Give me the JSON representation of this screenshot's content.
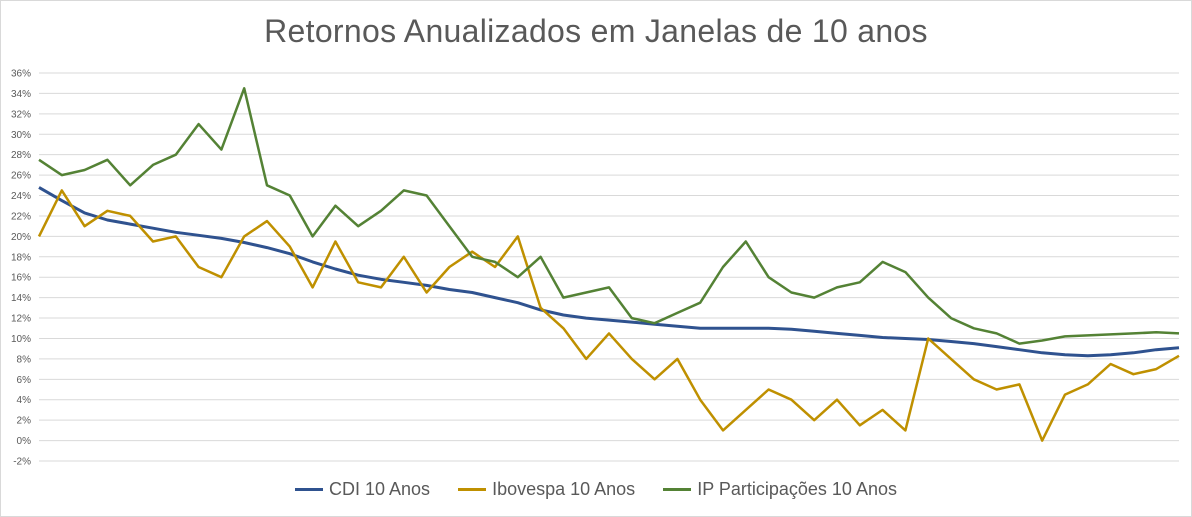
{
  "chart_data": {
    "type": "line",
    "title": "Retornos Anualizados em Janelas de 10 anos",
    "xlabel": "",
    "ylabel": "",
    "ylim": [
      -2,
      36
    ],
    "ytick_values": [
      -2,
      0,
      2,
      4,
      6,
      8,
      10,
      12,
      14,
      16,
      18,
      20,
      22,
      24,
      26,
      28,
      30,
      32,
      34,
      36
    ],
    "ytick_labels": [
      "-2%",
      "0%",
      "2%",
      "4%",
      "6%",
      "8%",
      "10%",
      "12%",
      "14%",
      "16%",
      "18%",
      "20%",
      "22%",
      "24%",
      "26%",
      "28%",
      "30%",
      "32%",
      "34%",
      "36%"
    ],
    "grid": true,
    "legend_position": "bottom",
    "x_points": 51,
    "series": [
      {
        "name": "CDI 10 Anos",
        "color": "#2f528f",
        "values": [
          24.8,
          23.5,
          22.3,
          21.6,
          21.2,
          20.8,
          20.4,
          20.1,
          19.8,
          19.4,
          18.9,
          18.3,
          17.5,
          16.8,
          16.2,
          15.8,
          15.5,
          15.2,
          14.8,
          14.5,
          14.0,
          13.5,
          12.8,
          12.3,
          12.0,
          11.8,
          11.6,
          11.4,
          11.2,
          11.0,
          11.0,
          11.0,
          11.0,
          10.9,
          10.7,
          10.5,
          10.3,
          10.1,
          10.0,
          9.9,
          9.7,
          9.5,
          9.2,
          8.9,
          8.6,
          8.4,
          8.3,
          8.4,
          8.6,
          8.9,
          9.1
        ]
      },
      {
        "name": "Ibovespa 10 Anos",
        "color": "#bf9000",
        "values": [
          20.0,
          24.5,
          21.0,
          22.5,
          22.0,
          19.5,
          20.0,
          17.0,
          16.0,
          20.0,
          21.5,
          19.0,
          15.0,
          19.5,
          15.5,
          15.0,
          18.0,
          14.5,
          17.0,
          18.5,
          17.0,
          20.0,
          13.0,
          11.0,
          8.0,
          10.5,
          8.0,
          6.0,
          8.0,
          4.0,
          1.0,
          3.0,
          5.0,
          4.0,
          2.0,
          4.0,
          1.5,
          3.0,
          1.0,
          10.0,
          8.0,
          6.0,
          5.0,
          5.5,
          0.0,
          4.5,
          5.5,
          7.5,
          6.5,
          7.0,
          8.3
        ]
      },
      {
        "name": "IP Participações 10 Anos",
        "color": "#548235",
        "values": [
          27.5,
          26.0,
          26.5,
          27.5,
          25.0,
          27.0,
          28.0,
          31.0,
          28.5,
          34.5,
          25.0,
          24.0,
          20.0,
          23.0,
          21.0,
          22.5,
          24.5,
          24.0,
          21.0,
          18.0,
          17.5,
          16.0,
          18.0,
          14.0,
          14.5,
          15.0,
          12.0,
          11.5,
          12.5,
          13.5,
          17.0,
          19.5,
          16.0,
          14.5,
          14.0,
          15.0,
          15.5,
          17.5,
          16.5,
          14.0,
          12.0,
          11.0,
          10.5,
          9.5,
          9.8,
          10.2,
          10.3,
          10.4,
          10.5,
          10.6,
          10.5
        ]
      }
    ]
  }
}
